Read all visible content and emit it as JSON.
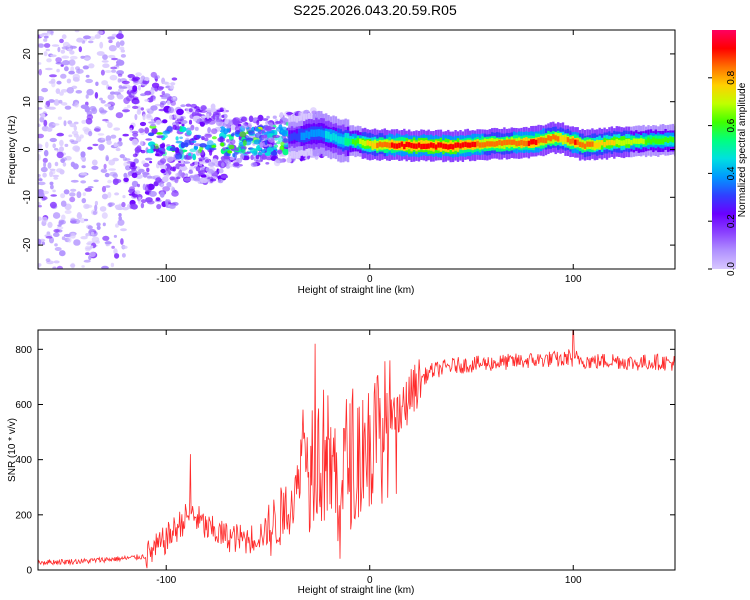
{
  "title": "S225.2026.043.20.59.R05",
  "colors": {
    "snr_line": "#ff2a2a",
    "spectrogram_palette": [
      "#ffffff",
      "#d8c8ff",
      "#b090ff",
      "#8a40ff",
      "#6a00ff",
      "#3040ff",
      "#0099ff",
      "#00e0e0",
      "#00ff80",
      "#40ff00",
      "#c0ff00",
      "#ffd000",
      "#ff7000",
      "#ff0000",
      "#ff0060"
    ]
  },
  "chart_data": [
    {
      "type": "heatmap",
      "name": "spectrogram",
      "xlabel": "Height of straight line (km)",
      "ylabel": "Frequency (Hz)",
      "xlim": [
        -163,
        150
      ],
      "ylim": [
        -25,
        25
      ],
      "xticks": [
        -100,
        0,
        100
      ],
      "yticks": [
        -20,
        -10,
        0,
        10,
        20
      ],
      "xtick_labels": [
        "-100",
        "0",
        "100"
      ],
      "ytick_labels": [
        "-20",
        "-10",
        "0",
        "10",
        "20"
      ],
      "colorbar": {
        "label": "Normalized spectral amplitude",
        "range": [
          0,
          1
        ],
        "ticks": [
          0.0,
          0.2,
          0.4,
          0.6,
          0.8
        ],
        "tick_labels": [
          "0.0",
          "0.2",
          "0.4",
          "0.6",
          "0.8"
        ]
      },
      "ridge": {
        "x": [
          -110,
          -95,
          -80,
          -65,
          -50,
          -40,
          -33,
          -25,
          -15,
          -5,
          0,
          10,
          20,
          40,
          60,
          80,
          90,
          95,
          100,
          105,
          120,
          150
        ],
        "freq": [
          2,
          1.5,
          1,
          1.5,
          2,
          2.5,
          3,
          3.5,
          2,
          1.5,
          1,
          1,
          0.8,
          0.7,
          1.2,
          1.5,
          2.5,
          2.2,
          1.5,
          0.8,
          1.5,
          2
        ],
        "amplitude": [
          0.15,
          0.2,
          0.25,
          0.3,
          0.3,
          0.35,
          0.4,
          0.45,
          0.5,
          0.7,
          0.8,
          0.9,
          0.95,
          0.95,
          0.85,
          0.9,
          0.85,
          0.8,
          0.9,
          0.85,
          0.75,
          0.6
        ]
      }
    },
    {
      "type": "line",
      "name": "snr",
      "xlabel": "Height of straight line (km)",
      "ylabel": "SNR (10 * v/v)",
      "xlim": [
        -163,
        150
      ],
      "ylim": [
        0,
        870
      ],
      "xticks": [
        -100,
        0,
        100
      ],
      "yticks": [
        0,
        200,
        400,
        600,
        800
      ],
      "xtick_labels": [
        "-100",
        "0",
        "100"
      ],
      "ytick_labels": [
        "0",
        "200",
        "400",
        "600",
        "800"
      ],
      "series": [
        {
          "name": "SNR",
          "x": [
            -163,
            -150,
            -140,
            -130,
            -120,
            -110,
            -103,
            -95,
            -88,
            -80,
            -70,
            -60,
            -50,
            -45,
            -40,
            -35,
            -33,
            -30,
            -27,
            -25,
            -22,
            -18,
            -15,
            -12,
            -8,
            -5,
            -2,
            0,
            3,
            6,
            10,
            15,
            20,
            25,
            30,
            40,
            50,
            60,
            70,
            80,
            90,
            95,
            99,
            100,
            101,
            105,
            110,
            120,
            130,
            140,
            150
          ],
          "y": [
            28,
            30,
            32,
            38,
            42,
            50,
            90,
            150,
            210,
            150,
            120,
            110,
            140,
            180,
            230,
            300,
            520,
            380,
            450,
            400,
            420,
            350,
            320,
            380,
            420,
            430,
            460,
            450,
            480,
            500,
            530,
            560,
            640,
            690,
            720,
            740,
            745,
            750,
            755,
            760,
            765,
            760,
            780,
            720,
            770,
            760,
            755,
            760,
            750,
            755,
            750
          ]
        }
      ],
      "peak_annotations": [
        {
          "x": -88,
          "y": 420
        },
        {
          "x": -27,
          "y": 820
        },
        {
          "x": 100,
          "y": 870
        }
      ]
    }
  ]
}
